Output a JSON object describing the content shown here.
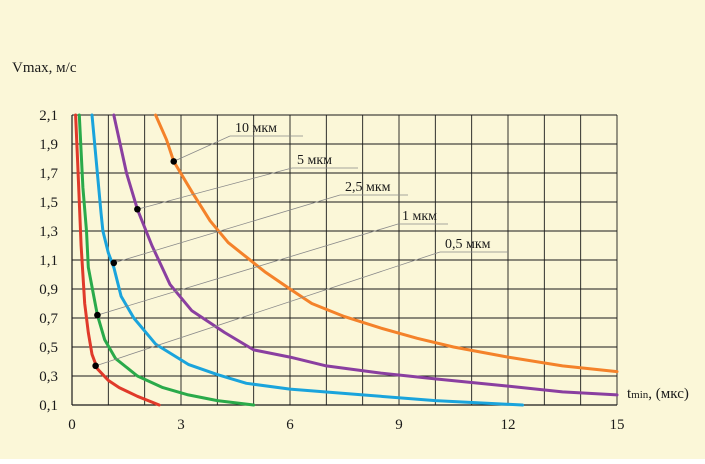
{
  "chart_data": {
    "type": "line",
    "title": "",
    "ylabel": "Vmax, м/с",
    "xlabel": "t min, (мкс)",
    "xlabel_sub": "min",
    "xlabel_main": "t",
    "xlabel_unit": ", (мкс)",
    "xlim": [
      0,
      15
    ],
    "ylim": [
      0.1,
      2.1
    ],
    "x_ticks": [
      0,
      3,
      6,
      9,
      12,
      15
    ],
    "x_tick_labels": [
      "0",
      "3",
      "6",
      "9",
      "12",
      "15"
    ],
    "y_ticks": [
      0.1,
      0.3,
      0.5,
      0.7,
      0.9,
      1.1,
      1.3,
      1.5,
      1.7,
      1.9,
      2.1
    ],
    "y_tick_labels": [
      "0,1",
      "0,3",
      "0,5",
      "0,7",
      "0,9",
      "1,1",
      "1,3",
      "1,5",
      "1,7",
      "1,9",
      "2,1"
    ],
    "grid": true,
    "series": [
      {
        "label": "0,5 мкм",
        "color": "#e03a2a",
        "label_value": [
          0.65,
          0.37
        ],
        "points": [
          [
            0.1,
            2.1
          ],
          [
            0.15,
            1.8
          ],
          [
            0.2,
            1.5
          ],
          [
            0.25,
            1.2
          ],
          [
            0.3,
            1.0
          ],
          [
            0.35,
            0.8
          ],
          [
            0.45,
            0.6
          ],
          [
            0.55,
            0.45
          ],
          [
            0.7,
            0.35
          ],
          [
            1.0,
            0.27
          ],
          [
            1.3,
            0.22
          ],
          [
            1.8,
            0.16
          ],
          [
            2.4,
            0.1
          ]
        ]
      },
      {
        "label": "1 мкм",
        "color": "#2aaa4a",
        "label_value": [
          0.7,
          0.72
        ],
        "points": [
          [
            0.2,
            2.1
          ],
          [
            0.3,
            1.6
          ],
          [
            0.4,
            1.3
          ],
          [
            0.45,
            1.05
          ],
          [
            0.6,
            0.85
          ],
          [
            0.7,
            0.72
          ],
          [
            0.9,
            0.55
          ],
          [
            1.2,
            0.42
          ],
          [
            1.8,
            0.3
          ],
          [
            2.5,
            0.22
          ],
          [
            3.2,
            0.17
          ],
          [
            4.0,
            0.13
          ],
          [
            5.0,
            0.1
          ]
        ]
      },
      {
        "label": "2,5 мкм",
        "color": "#1aa4dc",
        "label_value": [
          1.15,
          1.08
        ],
        "points": [
          [
            0.55,
            2.1
          ],
          [
            0.8,
            1.42
          ],
          [
            0.85,
            1.3
          ],
          [
            1.0,
            1.15
          ],
          [
            1.15,
            1.05
          ],
          [
            1.35,
            0.85
          ],
          [
            1.7,
            0.7
          ],
          [
            2.3,
            0.52
          ],
          [
            3.2,
            0.38
          ],
          [
            4.0,
            0.31
          ],
          [
            4.8,
            0.25
          ],
          [
            6.0,
            0.21
          ],
          [
            8.0,
            0.17
          ],
          [
            10.0,
            0.13
          ],
          [
            12.4,
            0.1
          ]
        ]
      },
      {
        "label": "5 мкм",
        "color": "#8a3fa0",
        "label_value": [
          1.8,
          1.45
        ],
        "points": [
          [
            1.15,
            2.1
          ],
          [
            1.5,
            1.7
          ],
          [
            1.8,
            1.45
          ],
          [
            2.2,
            1.2
          ],
          [
            2.7,
            0.93
          ],
          [
            3.3,
            0.75
          ],
          [
            4.2,
            0.6
          ],
          [
            5.0,
            0.48
          ],
          [
            6.0,
            0.43
          ],
          [
            7.0,
            0.37
          ],
          [
            8.5,
            0.32
          ],
          [
            10.0,
            0.28
          ],
          [
            12.0,
            0.23
          ],
          [
            13.5,
            0.19
          ],
          [
            15.0,
            0.17
          ]
        ]
      },
      {
        "label": "10 мкм",
        "color": "#f4822a",
        "label_value": [
          2.8,
          1.78
        ],
        "points": [
          [
            2.3,
            2.1
          ],
          [
            2.6,
            1.93
          ],
          [
            2.8,
            1.78
          ],
          [
            3.3,
            1.57
          ],
          [
            3.8,
            1.37
          ],
          [
            4.3,
            1.22
          ],
          [
            4.8,
            1.12
          ],
          [
            5.3,
            1.02
          ],
          [
            6.0,
            0.9
          ],
          [
            6.6,
            0.8
          ],
          [
            7.5,
            0.71
          ],
          [
            8.5,
            0.63
          ],
          [
            9.5,
            0.56
          ],
          [
            10.5,
            0.5
          ],
          [
            12.0,
            0.43
          ],
          [
            13.5,
            0.37
          ],
          [
            15.0,
            0.33
          ]
        ]
      }
    ]
  }
}
